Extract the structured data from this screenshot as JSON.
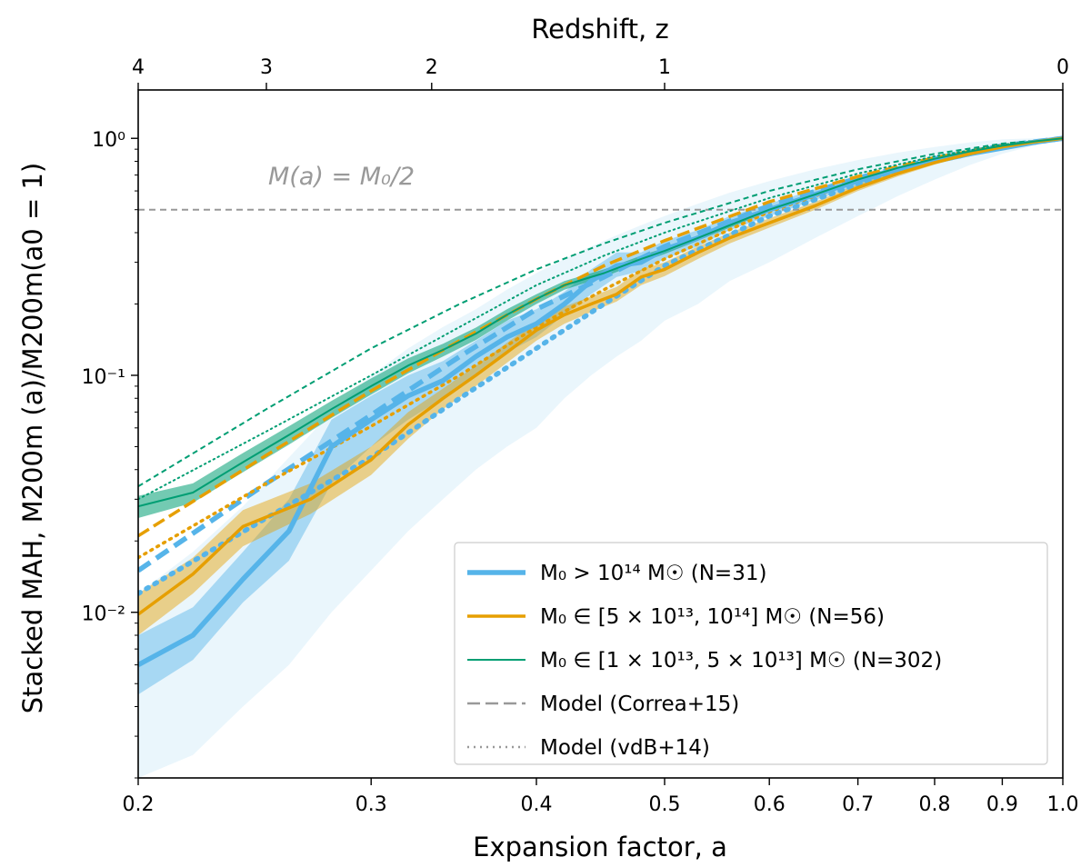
{
  "chart_data": {
    "type": "line",
    "xlabel": "Expansion factor, a",
    "ylabel": "Stacked MAH, M200m (a)/M200m(a0 = 1)",
    "top_xlabel": "Redshift, z",
    "xscale": "log",
    "yscale": "log",
    "xlim": [
      0.2,
      1.0
    ],
    "ylim": [
      0.002,
      1.6
    ],
    "xticks": [
      0.2,
      0.3,
      0.4,
      0.5,
      0.6,
      0.7,
      0.8,
      0.9,
      1.0
    ],
    "xtick_labels": [
      "0.2",
      "0.3",
      "0.4",
      "0.5",
      "0.6",
      "0.7",
      "0.8",
      "0.9",
      "1.0"
    ],
    "top_ticks_z": [
      4,
      3,
      2,
      1,
      0
    ],
    "top_tick_labels": [
      "4",
      "3",
      "2",
      "1",
      "0"
    ],
    "yticks": [
      0.01,
      0.1,
      1.0
    ],
    "ytick_labels": [
      "10⁻²",
      "10⁻¹",
      "10⁰"
    ],
    "grid": false,
    "legend_position": "lower-right",
    "annotation": {
      "text": "M(a) = M₀/2",
      "y": 0.5
    },
    "legend": [
      {
        "label": "M₀ > 10¹⁴ M☉ (N=31)",
        "color": "#56B4E9",
        "style": "solid"
      },
      {
        "label": "M₀ ∈ [5 × 10¹³, 10¹⁴] M☉ (N=56)",
        "color": "#E69F00",
        "style": "solid"
      },
      {
        "label": "M₀ ∈ [1 × 10¹³, 5 × 10¹³] M☉ (N=302)",
        "color": "#009E73",
        "style": "solid"
      },
      {
        "label": "Model (Correa+15)",
        "color": "#999999",
        "style": "dashed"
      },
      {
        "label": "Model (vdB+14)",
        "color": "#999999",
        "style": "dotted"
      }
    ],
    "series": [
      {
        "color": "#56B4E9",
        "x": [
          0.2,
          0.22,
          0.24,
          0.26,
          0.28,
          0.3,
          0.32,
          0.34,
          0.36,
          0.38,
          0.4,
          0.42,
          0.44,
          0.46,
          0.48,
          0.5,
          0.53,
          0.56,
          0.6,
          0.65,
          0.7,
          0.75,
          0.8,
          0.85,
          0.9,
          0.95,
          1.0
        ],
        "median": [
          0.006,
          0.008,
          0.0138,
          0.022,
          0.05,
          0.065,
          0.082,
          0.095,
          0.12,
          0.145,
          0.165,
          0.2,
          0.25,
          0.29,
          0.3,
          0.34,
          0.38,
          0.44,
          0.5,
          0.58,
          0.66,
          0.74,
          0.8,
          0.86,
          0.91,
          0.96,
          1.0
        ],
        "band_low": [
          0.0045,
          0.0063,
          0.011,
          0.0165,
          0.035,
          0.05,
          0.065,
          0.08,
          0.1,
          0.125,
          0.145,
          0.18,
          0.22,
          0.26,
          0.275,
          0.31,
          0.35,
          0.41,
          0.47,
          0.55,
          0.63,
          0.71,
          0.78,
          0.84,
          0.895,
          0.95,
          1.0
        ],
        "band_high": [
          0.008,
          0.0105,
          0.018,
          0.03,
          0.065,
          0.082,
          0.1,
          0.115,
          0.14,
          0.17,
          0.19,
          0.225,
          0.28,
          0.33,
          0.33,
          0.37,
          0.41,
          0.47,
          0.53,
          0.61,
          0.69,
          0.76,
          0.82,
          0.875,
          0.925,
          0.97,
          1.0
        ],
        "scatter_low": [
          0.002,
          0.0025,
          0.004,
          0.006,
          0.01,
          0.015,
          0.022,
          0.03,
          0.04,
          0.05,
          0.06,
          0.08,
          0.1,
          0.12,
          0.14,
          0.17,
          0.2,
          0.25,
          0.3,
          0.38,
          0.47,
          0.57,
          0.67,
          0.77,
          0.86,
          0.93,
          1.0
        ],
        "scatter_high": [
          0.012,
          0.018,
          0.028,
          0.045,
          0.07,
          0.1,
          0.13,
          0.16,
          0.19,
          0.23,
          0.27,
          0.31,
          0.35,
          0.39,
          0.43,
          0.47,
          0.53,
          0.59,
          0.66,
          0.74,
          0.81,
          0.87,
          0.92,
          0.96,
          0.99,
          1.0,
          1.0
        ],
        "correa_x": [
          0.2,
          0.25,
          0.3,
          0.35,
          0.4,
          0.45,
          0.5,
          0.6,
          0.7,
          0.8,
          0.9,
          1.0
        ],
        "correa": [
          0.015,
          0.035,
          0.068,
          0.12,
          0.19,
          0.26,
          0.35,
          0.52,
          0.68,
          0.82,
          0.93,
          1.0
        ],
        "vdb_x": [
          0.2,
          0.25,
          0.3,
          0.35,
          0.4,
          0.45,
          0.5,
          0.6,
          0.7,
          0.8,
          0.9,
          1.0
        ],
        "vdb": [
          0.012,
          0.025,
          0.045,
          0.08,
          0.13,
          0.2,
          0.29,
          0.47,
          0.64,
          0.8,
          0.92,
          1.0
        ]
      },
      {
        "color": "#E69F00",
        "x": [
          0.2,
          0.22,
          0.24,
          0.27,
          0.3,
          0.32,
          0.34,
          0.36,
          0.38,
          0.4,
          0.42,
          0.44,
          0.46,
          0.48,
          0.5,
          0.53,
          0.56,
          0.6,
          0.65,
          0.7,
          0.75,
          0.8,
          0.85,
          0.9,
          0.95,
          1.0
        ],
        "median": [
          0.0098,
          0.0145,
          0.023,
          0.03,
          0.044,
          0.062,
          0.08,
          0.1,
          0.125,
          0.155,
          0.18,
          0.2,
          0.22,
          0.26,
          0.28,
          0.33,
          0.38,
          0.44,
          0.52,
          0.62,
          0.71,
          0.79,
          0.86,
          0.92,
          0.965,
          1.0
        ],
        "band_low": [
          0.008,
          0.012,
          0.019,
          0.026,
          0.038,
          0.054,
          0.072,
          0.09,
          0.113,
          0.14,
          0.165,
          0.185,
          0.205,
          0.24,
          0.262,
          0.31,
          0.36,
          0.42,
          0.5,
          0.6,
          0.69,
          0.775,
          0.85,
          0.91,
          0.96,
          1.0
        ],
        "band_high": [
          0.012,
          0.017,
          0.027,
          0.035,
          0.05,
          0.07,
          0.088,
          0.11,
          0.137,
          0.168,
          0.195,
          0.215,
          0.236,
          0.28,
          0.3,
          0.35,
          0.4,
          0.46,
          0.54,
          0.64,
          0.73,
          0.805,
          0.87,
          0.93,
          0.97,
          1.0
        ],
        "correa_x": [
          0.2,
          0.25,
          0.3,
          0.35,
          0.4,
          0.45,
          0.5,
          0.6,
          0.7,
          0.8,
          0.9,
          1.0
        ],
        "correa": [
          0.021,
          0.046,
          0.086,
          0.14,
          0.21,
          0.29,
          0.37,
          0.54,
          0.69,
          0.83,
          0.93,
          1.0
        ],
        "vdb_x": [
          0.2,
          0.25,
          0.3,
          0.35,
          0.4,
          0.45,
          0.5,
          0.6,
          0.7,
          0.8,
          0.9,
          1.0
        ],
        "vdb": [
          0.017,
          0.035,
          0.061,
          0.1,
          0.16,
          0.23,
          0.31,
          0.49,
          0.66,
          0.81,
          0.93,
          1.0
        ]
      },
      {
        "color": "#009E73",
        "x": [
          0.2,
          0.22,
          0.24,
          0.26,
          0.28,
          0.3,
          0.32,
          0.34,
          0.36,
          0.38,
          0.4,
          0.42,
          0.45,
          0.48,
          0.5,
          0.53,
          0.56,
          0.6,
          0.65,
          0.7,
          0.75,
          0.8,
          0.85,
          0.9,
          0.95,
          1.0
        ],
        "median": [
          0.028,
          0.032,
          0.043,
          0.056,
          0.072,
          0.09,
          0.11,
          0.128,
          0.15,
          0.18,
          0.21,
          0.24,
          0.27,
          0.31,
          0.335,
          0.38,
          0.43,
          0.5,
          0.58,
          0.67,
          0.75,
          0.82,
          0.88,
          0.93,
          0.97,
          1.0
        ],
        "band_low": [
          0.025,
          0.029,
          0.039,
          0.051,
          0.066,
          0.083,
          0.102,
          0.12,
          0.141,
          0.17,
          0.2,
          0.23,
          0.26,
          0.3,
          0.325,
          0.37,
          0.42,
          0.49,
          0.57,
          0.66,
          0.74,
          0.815,
          0.875,
          0.925,
          0.967,
          1.0
        ],
        "band_high": [
          0.031,
          0.035,
          0.047,
          0.061,
          0.078,
          0.097,
          0.118,
          0.136,
          0.159,
          0.19,
          0.22,
          0.25,
          0.28,
          0.32,
          0.345,
          0.39,
          0.44,
          0.51,
          0.59,
          0.68,
          0.76,
          0.825,
          0.885,
          0.935,
          0.973,
          1.0
        ],
        "correa_x": [
          0.2,
          0.25,
          0.3,
          0.35,
          0.4,
          0.45,
          0.5,
          0.6,
          0.7,
          0.8,
          0.9,
          1.0
        ],
        "correa": [
          0.034,
          0.072,
          0.13,
          0.2,
          0.28,
          0.36,
          0.44,
          0.6,
          0.74,
          0.86,
          0.95,
          1.0
        ],
        "vdb_x": [
          0.2,
          0.25,
          0.3,
          0.35,
          0.4,
          0.45,
          0.5,
          0.6,
          0.7,
          0.8,
          0.9,
          1.0
        ],
        "vdb": [
          0.03,
          0.058,
          0.1,
          0.16,
          0.24,
          0.32,
          0.4,
          0.56,
          0.71,
          0.84,
          0.94,
          1.0
        ]
      }
    ]
  }
}
